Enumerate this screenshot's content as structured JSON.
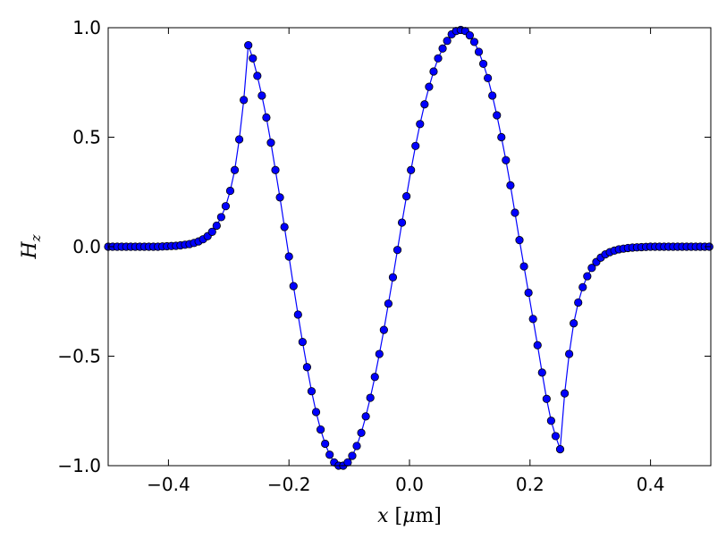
{
  "chart_data": {
    "type": "line",
    "xlabel": "x [μm]",
    "ylabel": "H_z",
    "xlim": [
      -0.5,
      0.5
    ],
    "ylim": [
      -1.0,
      1.0
    ],
    "xticks": [
      -0.4,
      -0.2,
      0.0,
      0.2,
      0.4
    ],
    "xtick_labels": [
      "−0.4",
      "−0.2",
      "0.0",
      "0.2",
      "0.4"
    ],
    "yticks": [
      -1.0,
      -0.5,
      0.0,
      0.5,
      1.0
    ],
    "ytick_labels": [
      "−1.0",
      "−0.5",
      "0.0",
      "0.5",
      "1.0"
    ],
    "grid": false,
    "legend": "none",
    "series": [
      {
        "color": "#0000ff",
        "marker": "circle",
        "x": [
          -0.5,
          -0.4925,
          -0.485,
          -0.4775,
          -0.47,
          -0.4625,
          -0.455,
          -0.4475,
          -0.44,
          -0.4325,
          -0.425,
          -0.4175,
          -0.41,
          -0.4025,
          -0.395,
          -0.3875,
          -0.38,
          -0.3725,
          -0.365,
          -0.3575,
          -0.35,
          -0.3425,
          -0.335,
          -0.3275,
          -0.32,
          -0.3125,
          -0.305,
          -0.2975,
          -0.29,
          -0.2825,
          -0.275,
          -0.2675,
          -0.26,
          -0.2525,
          -0.245,
          -0.2375,
          -0.23,
          -0.2225,
          -0.215,
          -0.2075,
          -0.2,
          -0.1925,
          -0.185,
          -0.1775,
          -0.17,
          -0.1625,
          -0.155,
          -0.1475,
          -0.14,
          -0.1325,
          -0.125,
          -0.1175,
          -0.11,
          -0.1025,
          -0.095,
          -0.0875,
          -0.08,
          -0.0725,
          -0.065,
          -0.0575,
          -0.05,
          -0.0425,
          -0.035,
          -0.0275,
          -0.02,
          -0.0125,
          -0.005,
          0.0025,
          0.01,
          0.0175,
          0.025,
          0.0325,
          0.04,
          0.0475,
          0.055,
          0.0625,
          0.07,
          0.0775,
          0.085,
          0.0925,
          0.1,
          0.1075,
          0.115,
          0.1225,
          0.13,
          0.1375,
          0.145,
          0.1525,
          0.16,
          0.1675,
          0.175,
          0.1825,
          0.19,
          0.1975,
          0.205,
          0.2125,
          0.22,
          0.2275,
          0.235,
          0.2425,
          0.25,
          0.2575,
          0.265,
          0.2725,
          0.28,
          0.2875,
          0.295,
          0.3025,
          0.31,
          0.3175,
          0.325,
          0.3325,
          0.34,
          0.3475,
          0.355,
          0.3625,
          0.37,
          0.3775,
          0.385,
          0.3925,
          0.4,
          0.4075,
          0.415,
          0.4225,
          0.43,
          0.4375,
          0.445,
          0.4525,
          0.46,
          0.4675,
          0.475,
          0.4825,
          0.49,
          0.4975
        ],
        "y": [
          0.0,
          0.0,
          0.0,
          0.0,
          0.0,
          0.0,
          0.0,
          0.0,
          0.0,
          0.0,
          0.0,
          0.0,
          0.001,
          0.002,
          0.003,
          0.004,
          0.006,
          0.009,
          0.012,
          0.017,
          0.024,
          0.034,
          0.048,
          0.068,
          0.096,
          0.135,
          0.185,
          0.255,
          0.35,
          0.49,
          0.67,
          0.92,
          0.86,
          0.78,
          0.69,
          0.59,
          0.475,
          0.35,
          0.225,
          0.09,
          -0.045,
          -0.18,
          -0.31,
          -0.435,
          -0.55,
          -0.66,
          -0.755,
          -0.835,
          -0.9,
          -0.95,
          -0.985,
          -1.0,
          -1.0,
          -0.985,
          -0.955,
          -0.91,
          -0.85,
          -0.775,
          -0.69,
          -0.595,
          -0.49,
          -0.38,
          -0.26,
          -0.14,
          -0.015,
          0.11,
          0.23,
          0.35,
          0.46,
          0.56,
          0.65,
          0.73,
          0.8,
          0.86,
          0.905,
          0.94,
          0.97,
          0.985,
          0.99,
          0.985,
          0.965,
          0.935,
          0.89,
          0.835,
          0.77,
          0.69,
          0.6,
          0.5,
          0.395,
          0.28,
          0.155,
          0.03,
          -0.09,
          -0.21,
          -0.33,
          -0.45,
          -0.575,
          -0.695,
          -0.795,
          -0.865,
          -0.925,
          -0.67,
          -0.49,
          -0.35,
          -0.255,
          -0.185,
          -0.135,
          -0.097,
          -0.07,
          -0.05,
          -0.035,
          -0.025,
          -0.018,
          -0.012,
          -0.009,
          -0.006,
          -0.004,
          -0.003,
          -0.002,
          -0.001,
          0.0,
          0.0,
          0.0,
          0.0,
          0.0,
          0.0,
          0.0,
          0.0,
          0.0,
          0.0,
          0.0,
          0.0,
          0.0,
          0.0
        ]
      }
    ]
  }
}
